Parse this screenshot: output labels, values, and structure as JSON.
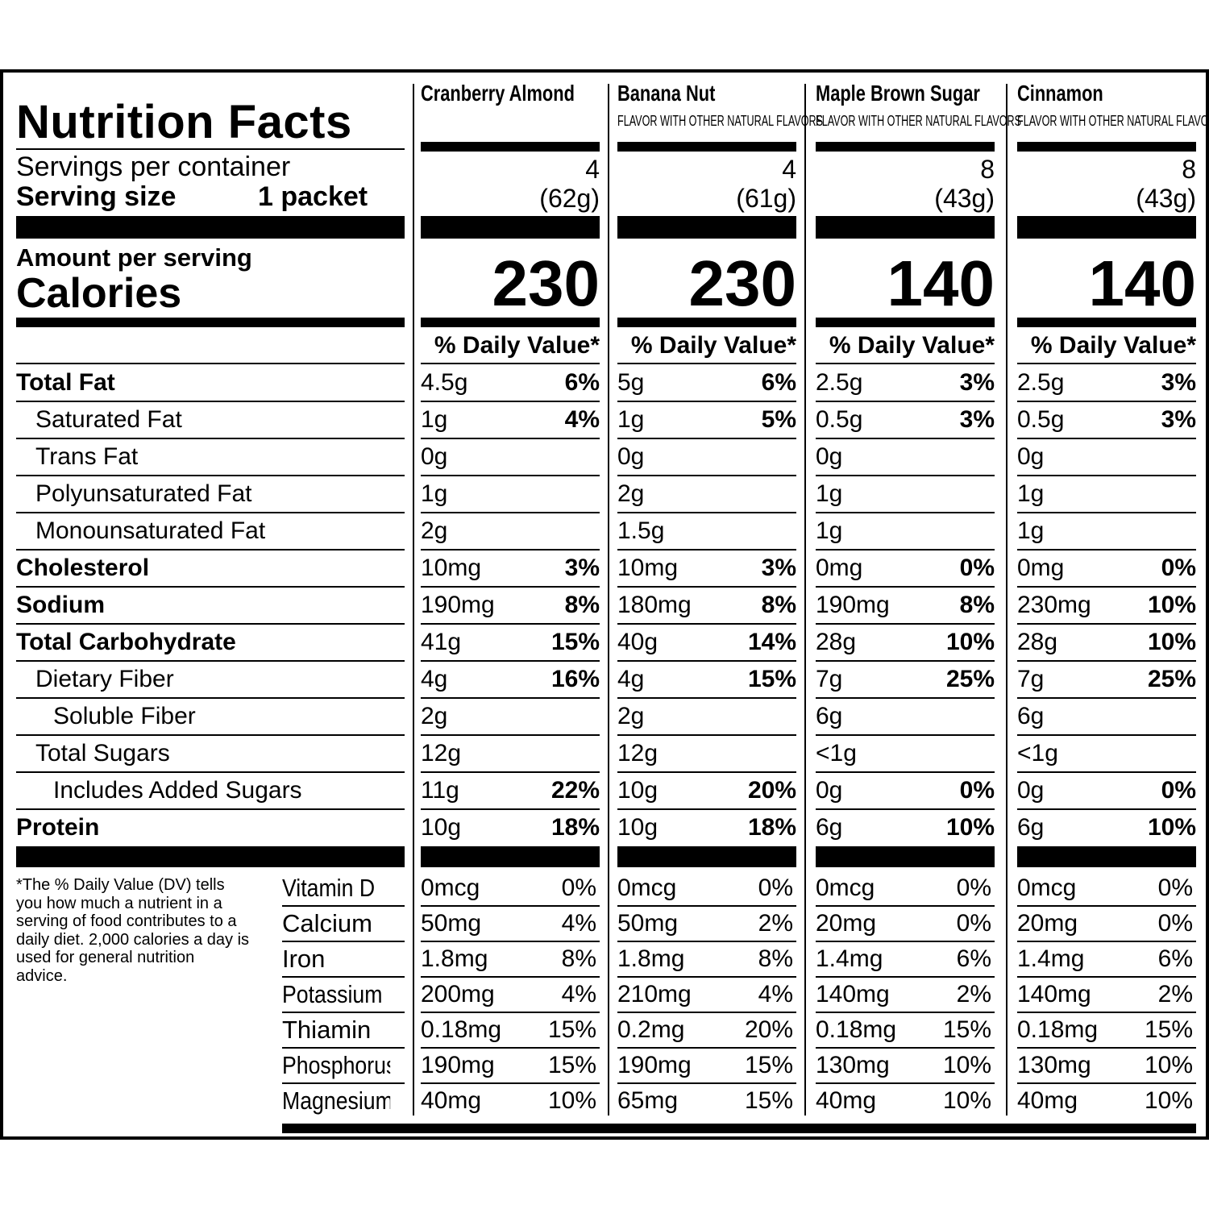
{
  "title": "Nutrition Facts",
  "servings_label": "Servings per container",
  "serving_size_label": "Serving size",
  "serving_size_value": "1 packet",
  "amount_per_serving": "Amount per serving",
  "calories_label": "Calories",
  "dv_header": "% Daily Value*",
  "nutrient_labels": [
    "Total Fat",
    "Saturated Fat",
    "Trans Fat",
    "Polyunsaturated Fat",
    "Monounsaturated Fat",
    "Cholesterol",
    "Sodium",
    "Total Carbohydrate",
    "Dietary Fiber",
    "Soluble Fiber",
    "Total Sugars",
    "Includes Added Sugars",
    "Protein"
  ],
  "nutrient_bold": [
    true,
    false,
    false,
    false,
    false,
    true,
    true,
    true,
    false,
    false,
    false,
    false,
    true
  ],
  "nutrient_indent": [
    0,
    1,
    1,
    1,
    1,
    0,
    0,
    0,
    1,
    2,
    1,
    2,
    0
  ],
  "vitamin_labels": [
    "Vitamin D",
    "Calcium",
    "Iron",
    "Potassium",
    "Thiamin",
    "Phosphorus",
    "Magnesium"
  ],
  "footnote": "*The % Daily Value (DV) tells you how much a nutrient in a serving of food contributes to a daily diet. 2,000 calories a day is used for general nutrition advice.",
  "products": [
    {
      "name": "Cranberry Almond",
      "subtitle": "",
      "servings": "4",
      "serving_size": "(62g)",
      "calories": "230",
      "nutrients": [
        [
          "4.5g",
          "6%"
        ],
        [
          "1g",
          "4%"
        ],
        [
          "0g",
          ""
        ],
        [
          "1g",
          ""
        ],
        [
          "2g",
          ""
        ],
        [
          "10mg",
          "3%"
        ],
        [
          "190mg",
          "8%"
        ],
        [
          "41g",
          "15%"
        ],
        [
          "4g",
          "16%"
        ],
        [
          "2g",
          ""
        ],
        [
          "12g",
          ""
        ],
        [
          "11g",
          "22%"
        ],
        [
          "10g",
          "18%"
        ]
      ],
      "vitamins": [
        [
          "0mcg",
          "0%"
        ],
        [
          "50mg",
          "4%"
        ],
        [
          "1.8mg",
          "8%"
        ],
        [
          "200mg",
          "4%"
        ],
        [
          "0.18mg",
          "15%"
        ],
        [
          "190mg",
          "15%"
        ],
        [
          "40mg",
          "10%"
        ]
      ]
    },
    {
      "name": "Banana Nut",
      "subtitle": "FLAVOR WITH OTHER NATURAL FLAVORS",
      "servings": "4",
      "serving_size": "(61g)",
      "calories": "230",
      "nutrients": [
        [
          "5g",
          "6%"
        ],
        [
          "1g",
          "5%"
        ],
        [
          "0g",
          ""
        ],
        [
          "2g",
          ""
        ],
        [
          "1.5g",
          ""
        ],
        [
          "10mg",
          "3%"
        ],
        [
          "180mg",
          "8%"
        ],
        [
          "40g",
          "14%"
        ],
        [
          "4g",
          "15%"
        ],
        [
          "2g",
          ""
        ],
        [
          "12g",
          ""
        ],
        [
          "10g",
          "20%"
        ],
        [
          "10g",
          "18%"
        ]
      ],
      "vitamins": [
        [
          "0mcg",
          "0%"
        ],
        [
          "50mg",
          "2%"
        ],
        [
          "1.8mg",
          "8%"
        ],
        [
          "210mg",
          "4%"
        ],
        [
          "0.2mg",
          "20%"
        ],
        [
          "190mg",
          "15%"
        ],
        [
          "65mg",
          "15%"
        ]
      ]
    },
    {
      "name": "Maple Brown Sugar",
      "subtitle": "FLAVOR WITH OTHER NATURAL FLAVORS",
      "servings": "8",
      "serving_size": "(43g)",
      "calories": "140",
      "nutrients": [
        [
          "2.5g",
          "3%"
        ],
        [
          "0.5g",
          "3%"
        ],
        [
          "0g",
          ""
        ],
        [
          "1g",
          ""
        ],
        [
          "1g",
          ""
        ],
        [
          "0mg",
          "0%"
        ],
        [
          "190mg",
          "8%"
        ],
        [
          "28g",
          "10%"
        ],
        [
          "7g",
          "25%"
        ],
        [
          "6g",
          ""
        ],
        [
          "<1g",
          ""
        ],
        [
          "0g",
          "0%"
        ],
        [
          "6g",
          "10%"
        ]
      ],
      "vitamins": [
        [
          "0mcg",
          "0%"
        ],
        [
          "20mg",
          "0%"
        ],
        [
          "1.4mg",
          "6%"
        ],
        [
          "140mg",
          "2%"
        ],
        [
          "0.18mg",
          "15%"
        ],
        [
          "130mg",
          "10%"
        ],
        [
          "40mg",
          "10%"
        ]
      ]
    },
    {
      "name": "Cinnamon",
      "subtitle": "FLAVOR WITH OTHER NATURAL FLAVORS",
      "servings": "8",
      "serving_size": "(43g)",
      "calories": "140",
      "nutrients": [
        [
          "2.5g",
          "3%"
        ],
        [
          "0.5g",
          "3%"
        ],
        [
          "0g",
          ""
        ],
        [
          "1g",
          ""
        ],
        [
          "1g",
          ""
        ],
        [
          "0mg",
          "0%"
        ],
        [
          "230mg",
          "10%"
        ],
        [
          "28g",
          "10%"
        ],
        [
          "7g",
          "25%"
        ],
        [
          "6g",
          ""
        ],
        [
          "<1g",
          ""
        ],
        [
          "0g",
          "0%"
        ],
        [
          "6g",
          "10%"
        ]
      ],
      "vitamins": [
        [
          "0mcg",
          "0%"
        ],
        [
          "20mg",
          "0%"
        ],
        [
          "1.4mg",
          "6%"
        ],
        [
          "140mg",
          "2%"
        ],
        [
          "0.18mg",
          "15%"
        ],
        [
          "130mg",
          "10%"
        ],
        [
          "40mg",
          "10%"
        ]
      ]
    }
  ]
}
